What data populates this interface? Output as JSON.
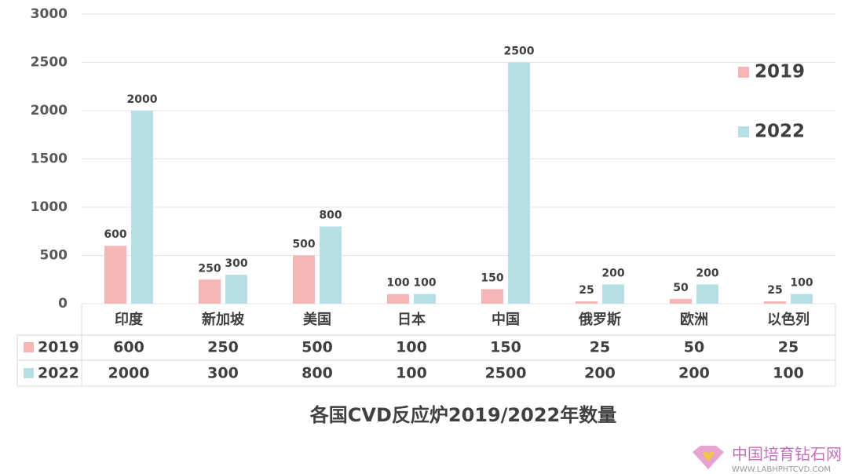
{
  "chart_data": {
    "type": "bar",
    "title": "各国CVD反应炉2019/2022年数量",
    "categories": [
      "印度",
      "新加坡",
      "美国",
      "日本",
      "中国",
      "俄罗斯",
      "欧洲",
      "以色列"
    ],
    "series": [
      {
        "name": "2019",
        "color": "#f4b6b6",
        "values": [
          600,
          250,
          500,
          100,
          150,
          25,
          50,
          25
        ]
      },
      {
        "name": "2022",
        "color": "#b6e0e3",
        "values": [
          2000,
          300,
          800,
          100,
          2500,
          200,
          200,
          100
        ]
      }
    ],
    "ylim": [
      0,
      3000
    ],
    "yticks": [
      0,
      500,
      1000,
      1500,
      2000,
      2500,
      3000
    ],
    "grid": true,
    "legend": "right",
    "data_table": true
  },
  "watermark": {
    "name": "中国培育钻石网",
    "url": "WWW.LABHPHTCVD.COM"
  }
}
